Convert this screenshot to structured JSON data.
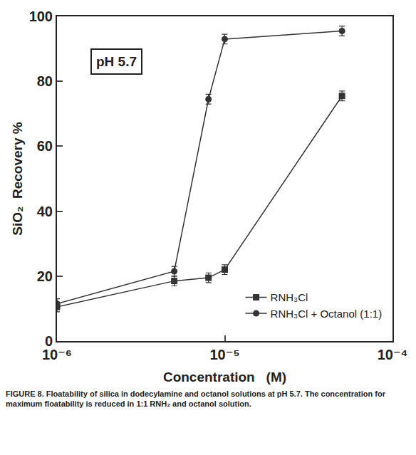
{
  "chart_data": {
    "type": "line",
    "annotation": "pH 5.7",
    "caption": "FIGURE 8. Floatability of silica in dodecylamine and octanol solutions at pH 5.7. The concentration for maximum floatability is reduced in 1:1 RNH₂ and octanol solution.",
    "x_label": "Concentration   (M)",
    "y_label": "SiO₂  Recovery %",
    "log": "x",
    "grid": false,
    "legend": "lower right",
    "xlim": [
      1e-06,
      0.0001
    ],
    "xticks": [
      {
        "value": 1e-06,
        "label": "10⁻⁶"
      },
      {
        "value": 1e-05,
        "label": "10⁻⁵"
      },
      {
        "value": 0.0001,
        "label": "10⁻⁴"
      }
    ],
    "ylim": [
      0,
      100
    ],
    "yticks": [
      0,
      20,
      40,
      60,
      80,
      100
    ],
    "series": [
      {
        "name": "RNH₃Cl",
        "color": "#333333",
        "marker": "square",
        "line_style": "solid",
        "x": [
          1e-06,
          5e-06,
          8e-06,
          1e-05,
          5e-05
        ],
        "values": [
          10.5,
          18.5,
          19.5,
          22,
          75.5
        ],
        "errors": [
          1.5,
          1.5,
          1.5,
          1.5,
          1.5
        ]
      },
      {
        "name": "RNH₃Cl + Octanol (1:1)",
        "color": "#333333",
        "marker": "circle",
        "line_style": "solid",
        "x": [
          1e-06,
          5e-06,
          8e-06,
          1e-05,
          5e-05
        ],
        "values": [
          11.5,
          21.5,
          74.5,
          93,
          95.5
        ],
        "errors": [
          1.5,
          1.5,
          1.5,
          1.5,
          1.5
        ]
      }
    ]
  }
}
